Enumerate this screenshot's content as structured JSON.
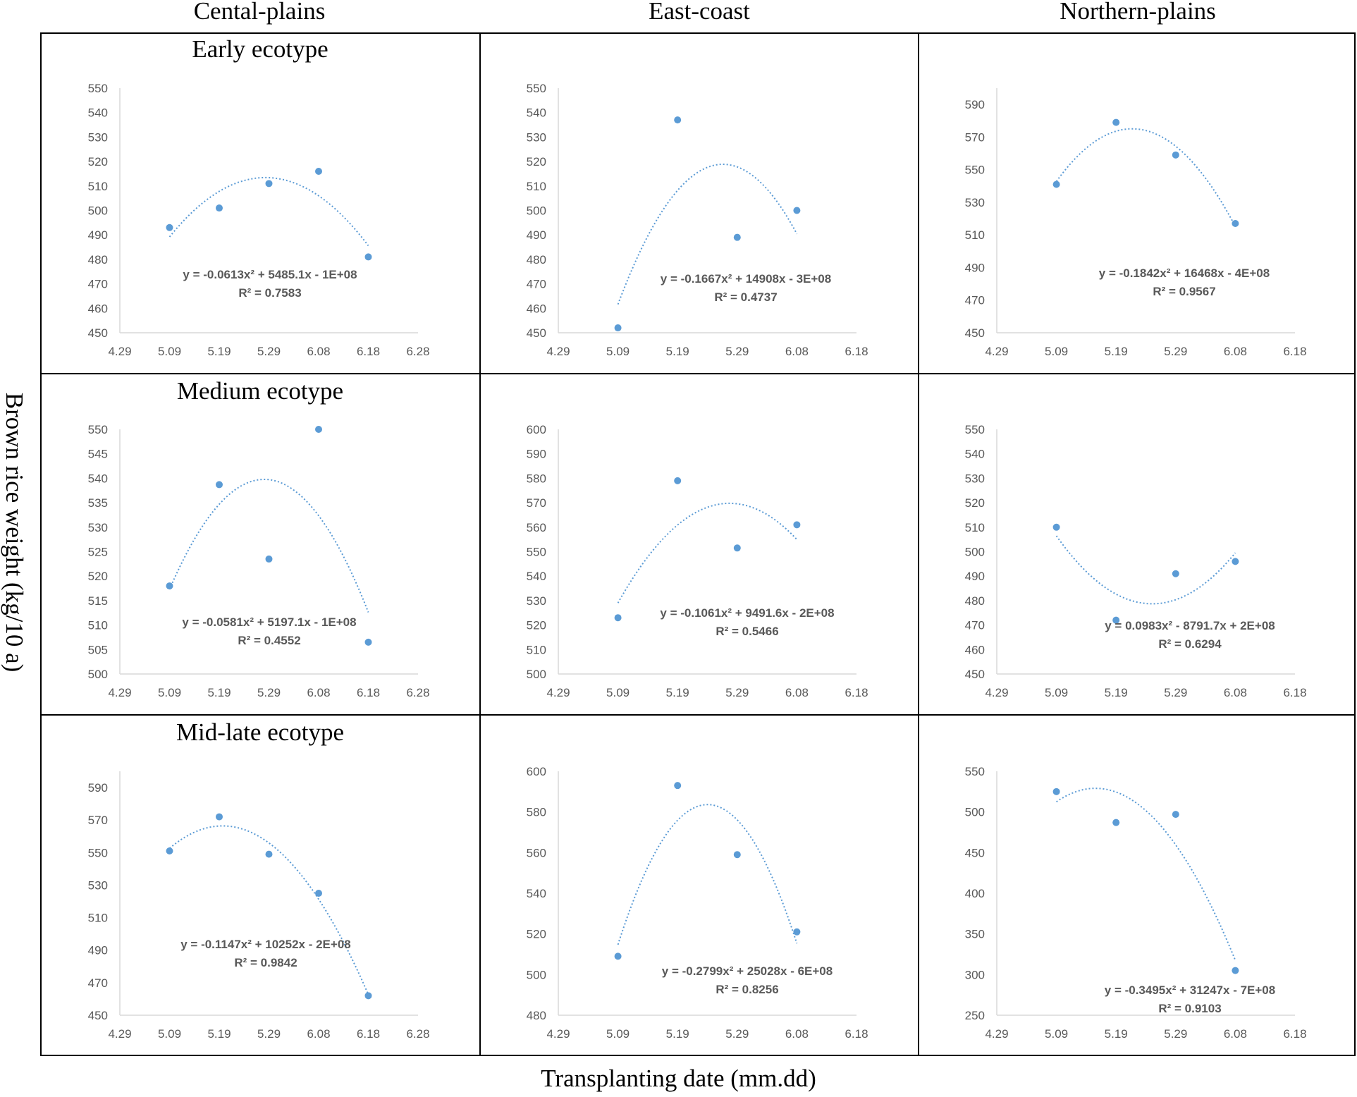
{
  "columns": [
    "Cental-plains",
    "East-coast",
    "Northern-plains"
  ],
  "rows": [
    "Early ecotype",
    "Medium ecotype",
    "Mid-late ecotype"
  ],
  "ylabel": "Brown rice weight (kg/10 a)",
  "xlabel": "Transplanting date (mm.dd)",
  "colors": {
    "marker": "#5b9bd5",
    "trend": "#5b9bd5",
    "axis": "#d9d9d9",
    "tick_text": "#595959",
    "eq_text": "#595959"
  },
  "chart_data": [
    {
      "type": "scatter",
      "row": "Early ecotype",
      "column": "Cental-plains",
      "xticks": [
        "4.29",
        "5.09",
        "5.19",
        "5.29",
        "6.08",
        "6.18",
        "6.28"
      ],
      "ylim": [
        450,
        550
      ],
      "yticks": [
        450,
        460,
        470,
        480,
        490,
        500,
        510,
        520,
        530,
        540,
        550
      ],
      "x": [
        "5.09",
        "5.19",
        "5.29",
        "6.08",
        "6.18"
      ],
      "y": [
        493,
        501,
        511,
        516,
        481
      ],
      "trendline": "polynomial-2",
      "equation": "y = -0.0613x² + 5485.1x - 1E+08",
      "r2": "R² = 0.7583"
    },
    {
      "type": "scatter",
      "row": "Early ecotype",
      "column": "East-coast",
      "xticks": [
        "4.29",
        "5.09",
        "5.19",
        "5.29",
        "6.08",
        "6.18"
      ],
      "ylim": [
        450,
        550
      ],
      "yticks": [
        450,
        460,
        470,
        480,
        490,
        500,
        510,
        520,
        530,
        540,
        550
      ],
      "x": [
        "5.09",
        "5.19",
        "5.29",
        "6.08"
      ],
      "y": [
        452,
        537,
        489,
        500
      ],
      "trendline": "polynomial-2",
      "equation": "y = -0.1667x² + 14908x - 3E+08",
      "r2": "R² = 0.4737"
    },
    {
      "type": "scatter",
      "row": "Early ecotype",
      "column": "Northern-plains",
      "xticks": [
        "4.29",
        "5.09",
        "5.19",
        "5.29",
        "6.08",
        "6.18"
      ],
      "ylim": [
        450,
        600
      ],
      "yticks": [
        450,
        470,
        490,
        510,
        530,
        550,
        570,
        590
      ],
      "x": [
        "5.09",
        "5.19",
        "5.29",
        "6.08"
      ],
      "y": [
        541,
        579,
        559,
        517
      ],
      "trendline": "polynomial-2",
      "equation": "y = -0.1842x² + 16468x - 4E+08",
      "r2": "R² = 0.9567"
    },
    {
      "type": "scatter",
      "row": "Medium ecotype",
      "column": "Cental-plains",
      "xticks": [
        "4.29",
        "5.09",
        "5.19",
        "5.29",
        "6.08",
        "6.18",
        "6.28"
      ],
      "ylim": [
        500,
        550
      ],
      "yticks": [
        500,
        505,
        510,
        515,
        520,
        525,
        530,
        535,
        540,
        545,
        550
      ],
      "x": [
        "5.09",
        "5.19",
        "5.29",
        "6.08",
        "6.18"
      ],
      "y": [
        518,
        538.7,
        523.5,
        550,
        506.5
      ],
      "trendline": "polynomial-2",
      "equation": "y = -0.0581x² + 5197.1x - 1E+08",
      "r2": "R² = 0.4552"
    },
    {
      "type": "scatter",
      "row": "Medium ecotype",
      "column": "East-coast",
      "xticks": [
        "4.29",
        "5.09",
        "5.19",
        "5.29",
        "6.08",
        "6.18"
      ],
      "ylim": [
        500,
        600
      ],
      "yticks": [
        500,
        510,
        520,
        530,
        540,
        550,
        560,
        570,
        580,
        590,
        600
      ],
      "x": [
        "5.09",
        "5.19",
        "5.29",
        "6.08"
      ],
      "y": [
        523,
        579,
        551.5,
        561
      ],
      "trendline": "polynomial-2",
      "equation": "y = -0.1061x² + 9491.6x - 2E+08",
      "r2": "R² = 0.5466"
    },
    {
      "type": "scatter",
      "row": "Medium ecotype",
      "column": "Northern-plains",
      "xticks": [
        "4.29",
        "5.09",
        "5.19",
        "5.29",
        "6.08",
        "6.18"
      ],
      "ylim": [
        450,
        550
      ],
      "yticks": [
        450,
        460,
        470,
        480,
        490,
        500,
        510,
        520,
        530,
        540,
        550
      ],
      "x": [
        "5.09",
        "5.19",
        "5.29",
        "6.08"
      ],
      "y": [
        510,
        472,
        491,
        496
      ],
      "trendline": "polynomial-2",
      "equation": "y = 0.0983x² - 8791.7x + 2E+08",
      "r2": "R² = 0.6294"
    },
    {
      "type": "scatter",
      "row": "Mid-late ecotype",
      "column": "Cental-plains",
      "xticks": [
        "4.29",
        "5.09",
        "5.19",
        "5.29",
        "6.08",
        "6.18",
        "6.28"
      ],
      "ylim": [
        450,
        600
      ],
      "yticks": [
        450,
        470,
        490,
        510,
        530,
        550,
        570,
        590
      ],
      "x": [
        "5.09",
        "5.19",
        "5.29",
        "6.08",
        "6.18"
      ],
      "y": [
        551,
        572,
        549,
        525,
        462
      ],
      "trendline": "polynomial-2",
      "equation": "y = -0.1147x² + 10252x - 2E+08",
      "r2": "R² = 0.9842"
    },
    {
      "type": "scatter",
      "row": "Mid-late ecotype",
      "column": "East-coast",
      "xticks": [
        "4.29",
        "5.09",
        "5.19",
        "5.29",
        "6.08",
        "6.18"
      ],
      "ylim": [
        480,
        600
      ],
      "yticks": [
        480,
        500,
        520,
        540,
        560,
        580,
        600
      ],
      "x": [
        "5.09",
        "5.19",
        "5.29",
        "6.08"
      ],
      "y": [
        509,
        593,
        559,
        521
      ],
      "trendline": "polynomial-2",
      "equation": "y = -0.2799x² + 25028x - 6E+08",
      "r2": "R² = 0.8256"
    },
    {
      "type": "scatter",
      "row": "Mid-late ecotype",
      "column": "Northern-plains",
      "xticks": [
        "4.29",
        "5.09",
        "5.19",
        "5.29",
        "6.08",
        "6.18"
      ],
      "ylim": [
        250,
        550
      ],
      "yticks": [
        250,
        300,
        350,
        400,
        450,
        500,
        550
      ],
      "x": [
        "5.09",
        "5.19",
        "5.29",
        "6.08"
      ],
      "y": [
        525,
        487,
        497,
        305
      ],
      "trendline": "polynomial-2",
      "equation": "y = -0.3495x² + 31247x - 7E+08",
      "r2": "R² = 0.9103"
    }
  ]
}
